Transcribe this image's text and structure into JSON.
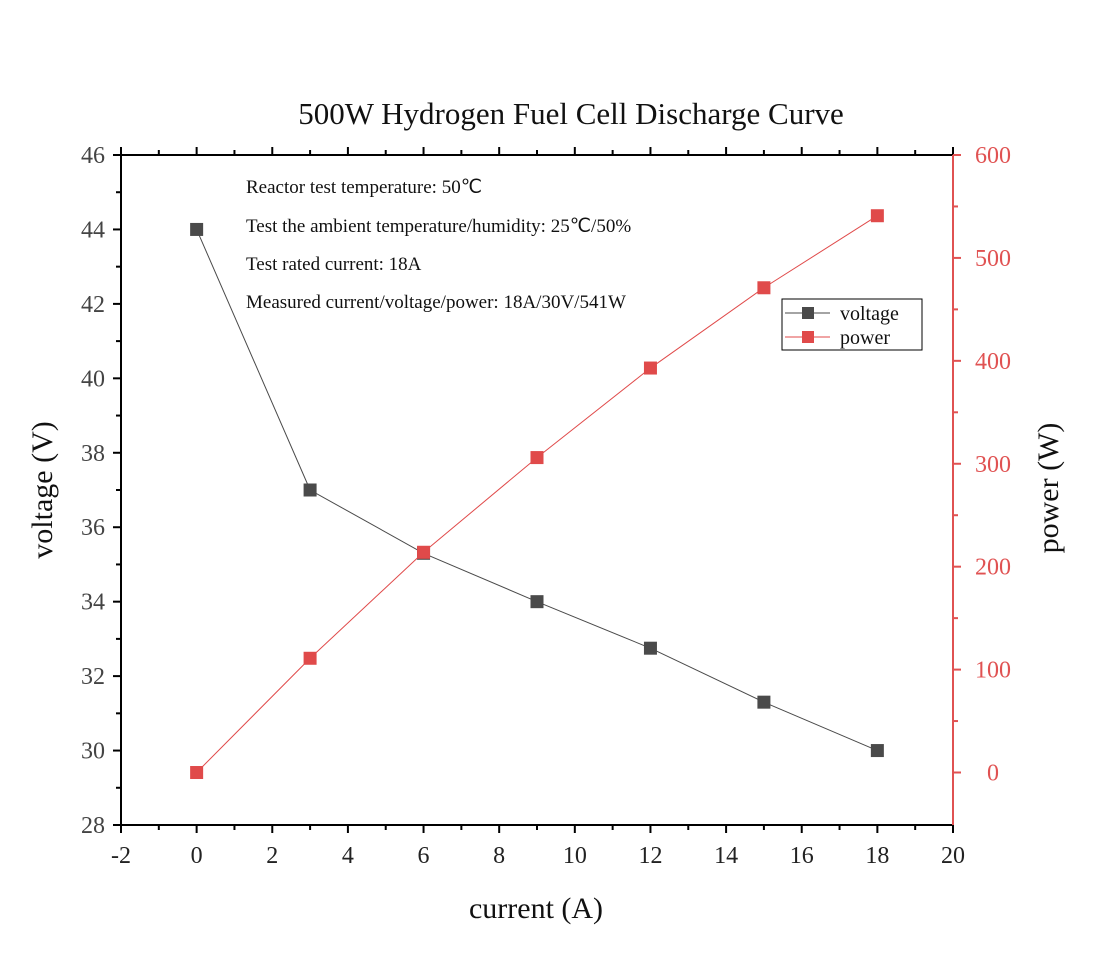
{
  "chart_data": {
    "type": "line",
    "title": "500W Hydrogen Fuel Cell Discharge Curve",
    "xlabel": "current (A)",
    "ylabel_left": "voltage (V)",
    "ylabel_right": "power (W)",
    "xlim": [
      -2,
      20
    ],
    "ylim_left": [
      28,
      46
    ],
    "ylim_right": [
      -51,
      600
    ],
    "x_ticks": [
      "-2",
      "0",
      "2",
      "4",
      "6",
      "8",
      "10",
      "12",
      "14",
      "16",
      "18",
      "20"
    ],
    "y_left_ticks": [
      "28",
      "30",
      "32",
      "34",
      "36",
      "38",
      "40",
      "42",
      "44",
      "46"
    ],
    "y_right_ticks": [
      "0",
      "100",
      "200",
      "300",
      "400",
      "500",
      "600"
    ],
    "grid": false,
    "legend_position": "top-right",
    "series": [
      {
        "name": "voltage",
        "axis": "left",
        "color": "#4a4a4a",
        "x": [
          0,
          3,
          6,
          9,
          12,
          15,
          18
        ],
        "y": [
          44,
          37,
          35.3,
          34,
          32.75,
          31.3,
          30
        ]
      },
      {
        "name": "power",
        "axis": "right",
        "color": "#e04a4a",
        "x": [
          0,
          3,
          6,
          9,
          12,
          15,
          18
        ],
        "y": [
          0,
          111,
          214,
          306,
          393,
          471,
          541
        ]
      }
    ],
    "annotations": [
      "Reactor test temperature: 50℃",
      "Test the ambient temperature/humidity: 25℃/50%",
      "Test rated current: 18A",
      "Measured current/voltage/power: 18A/30V/541W"
    ],
    "colors": {
      "right_axis": "#e05252",
      "left_axis": "#000000"
    }
  }
}
